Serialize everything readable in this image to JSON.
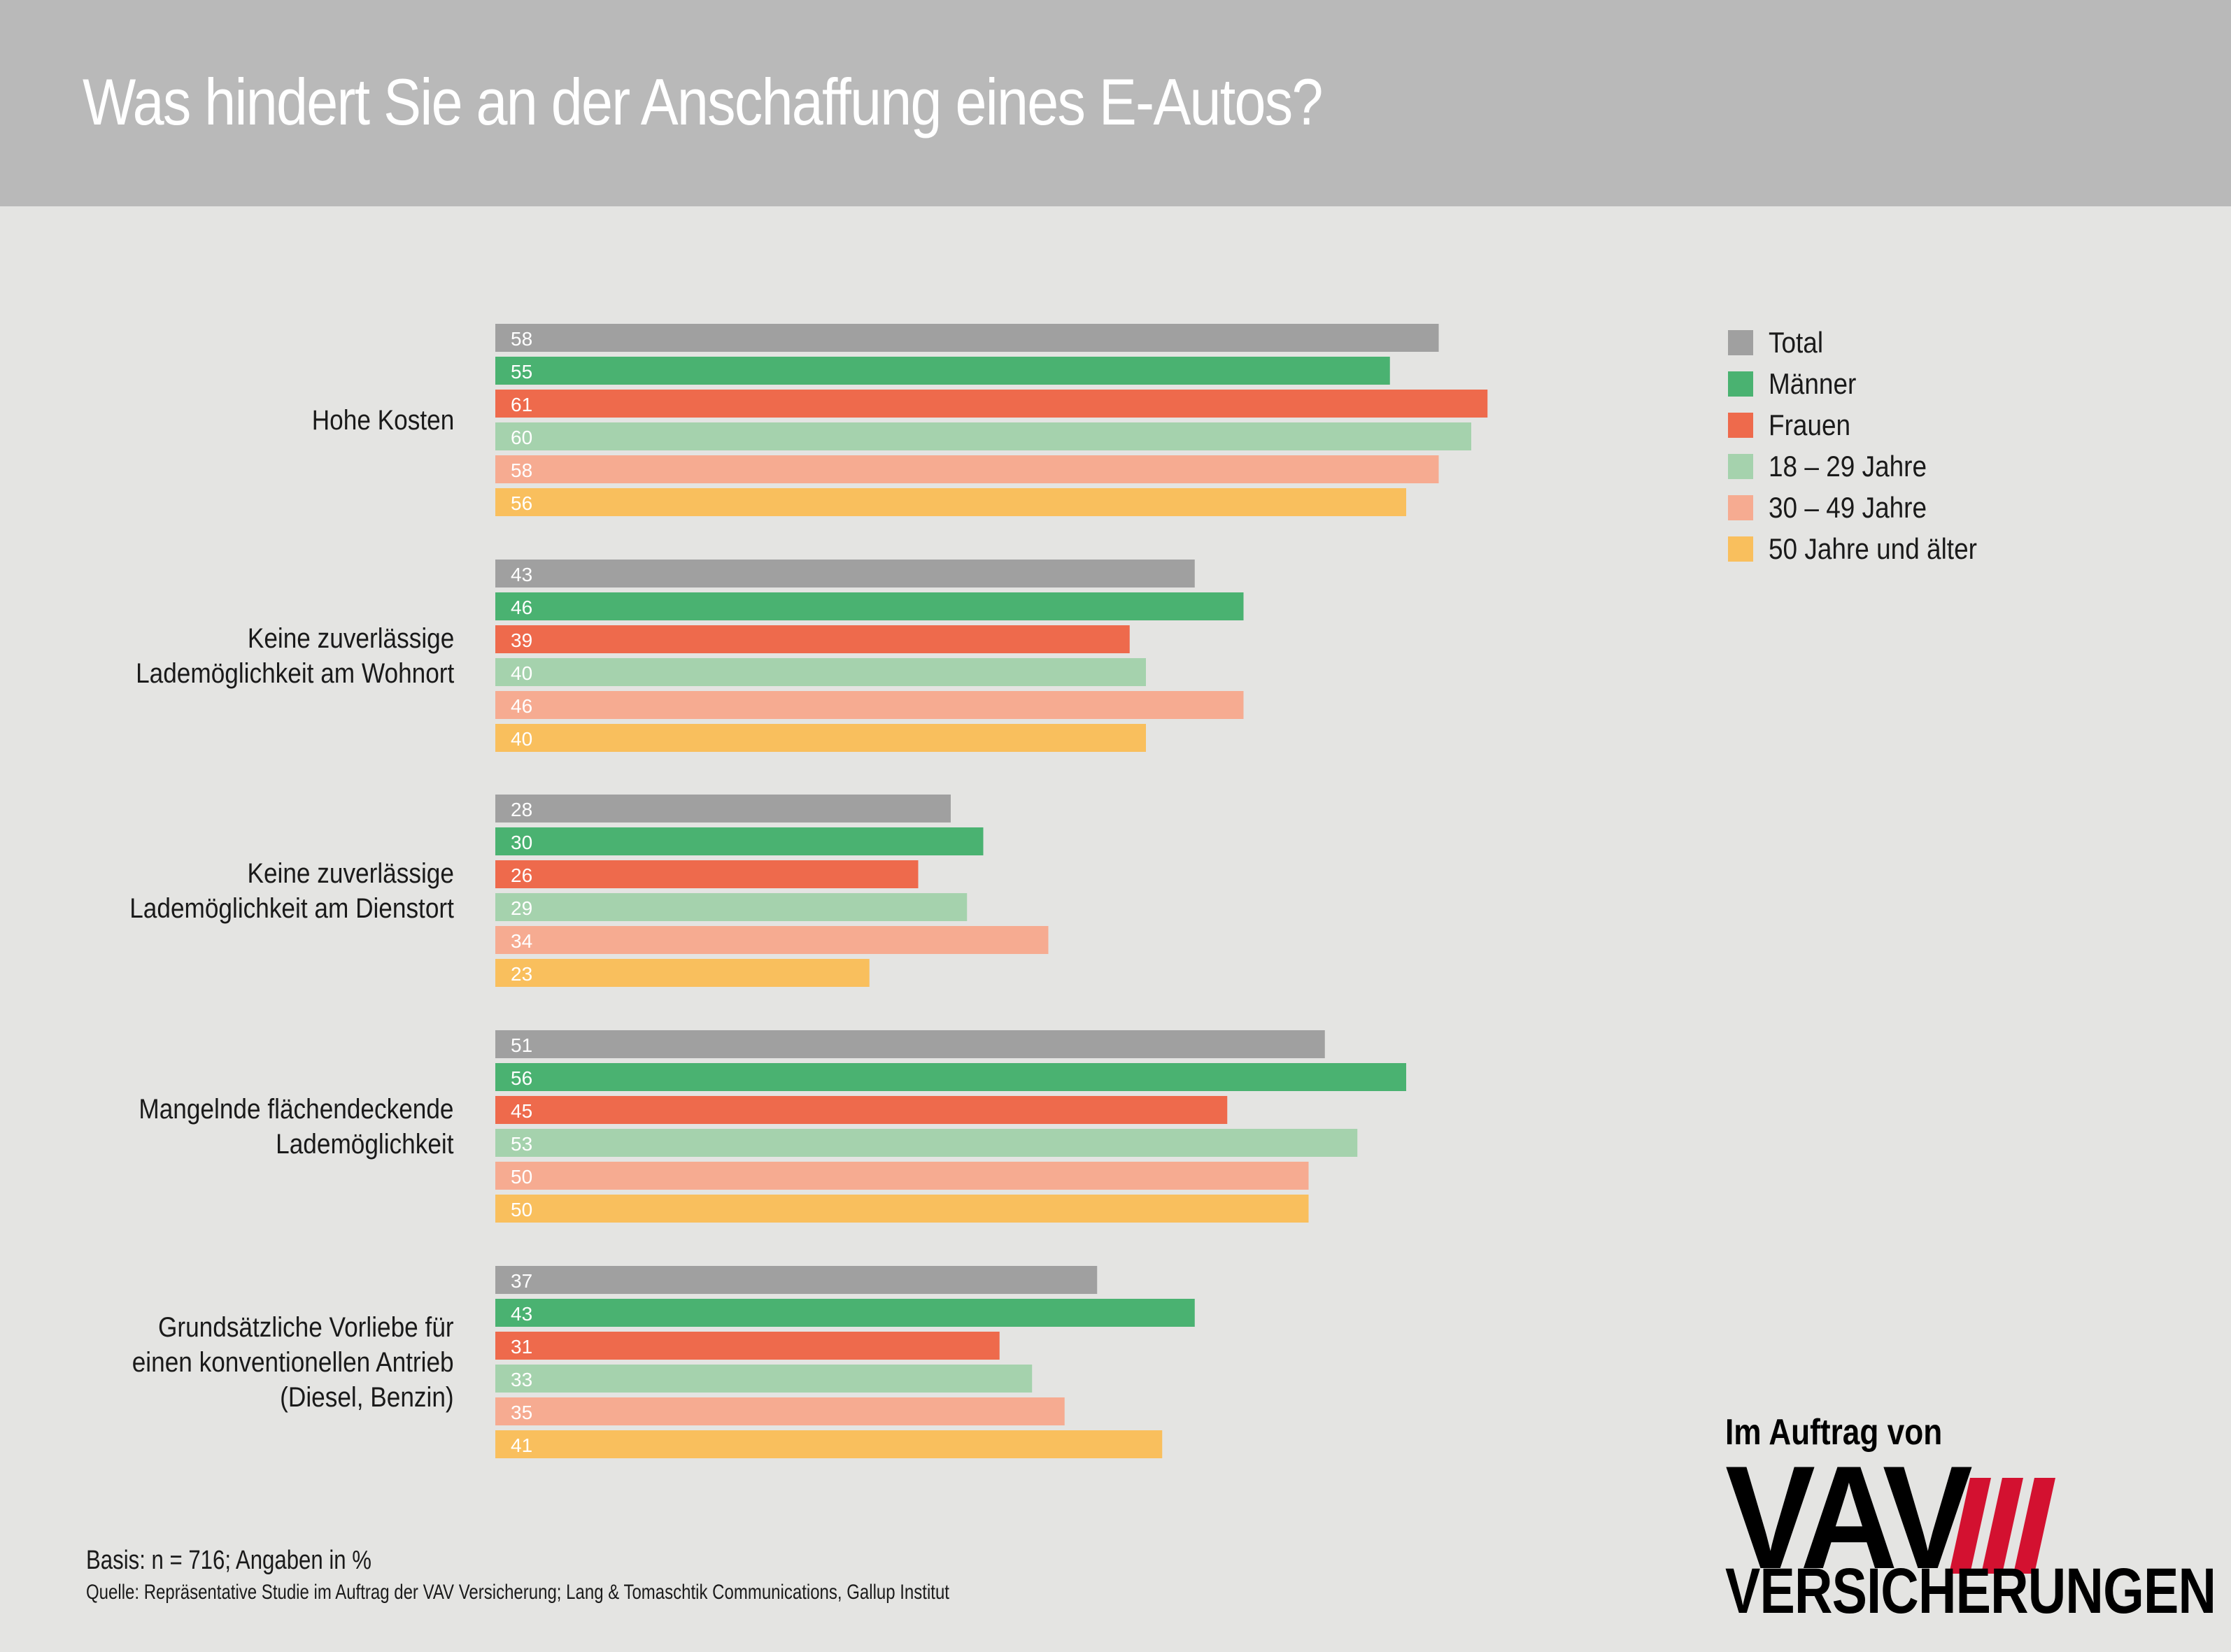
{
  "header": {
    "title": "Was hindert Sie an der Anschaffung eines E-Autos?"
  },
  "chart_data": {
    "type": "bar",
    "orientation": "horizontal",
    "title": "Was hindert Sie an der Anschaffung eines E-Autos?",
    "xlabel": "",
    "ylabel": "",
    "unit": "%",
    "xlim": [
      0,
      65
    ],
    "grid": false,
    "legend_position": "top-right",
    "categories": [
      [
        "Hohe Kosten"
      ],
      [
        "Keine zuverlässige",
        "Lademöglichkeit am Wohnort"
      ],
      [
        "Keine zuverlässige",
        "Lademöglichkeit am Dienstort"
      ],
      [
        "Mangelnde flächendeckende",
        "Lademöglichkeit"
      ],
      [
        "Grundsätzliche Vorliebe für",
        "einen konventionellen Antrieb",
        "(Diesel, Benzin)"
      ]
    ],
    "series": [
      {
        "name": "Total",
        "color": "#a0a0a0",
        "values": [
          58,
          43,
          28,
          51,
          37
        ]
      },
      {
        "name": "Männer",
        "color": "#4ab271",
        "values": [
          55,
          46,
          30,
          56,
          43
        ]
      },
      {
        "name": "Frauen",
        "color": "#ee6a4c",
        "values": [
          61,
          39,
          26,
          45,
          31
        ]
      },
      {
        "name": "18 – 29 Jahre",
        "color": "#a5d2ad",
        "values": [
          60,
          40,
          29,
          53,
          33
        ]
      },
      {
        "name": "30 – 49 Jahre",
        "color": "#f6ab91",
        "values": [
          58,
          46,
          34,
          50,
          35
        ]
      },
      {
        "name": "50 Jahre und älter",
        "color": "#f9bf5d",
        "values": [
          56,
          40,
          23,
          50,
          41
        ]
      }
    ]
  },
  "footer": {
    "basis": "Basis: n = 716; Angaben in %",
    "source": "Quelle: Repräsentative Studie im Auftrag der VAV Versicherung; Lang & Tomaschtik Communications, Gallup Institut"
  },
  "logo": {
    "top": "Im Auftrag von",
    "brand": "VAV",
    "bottom": "VERSICHERUNGEN",
    "stripe_color": "#d31130"
  }
}
